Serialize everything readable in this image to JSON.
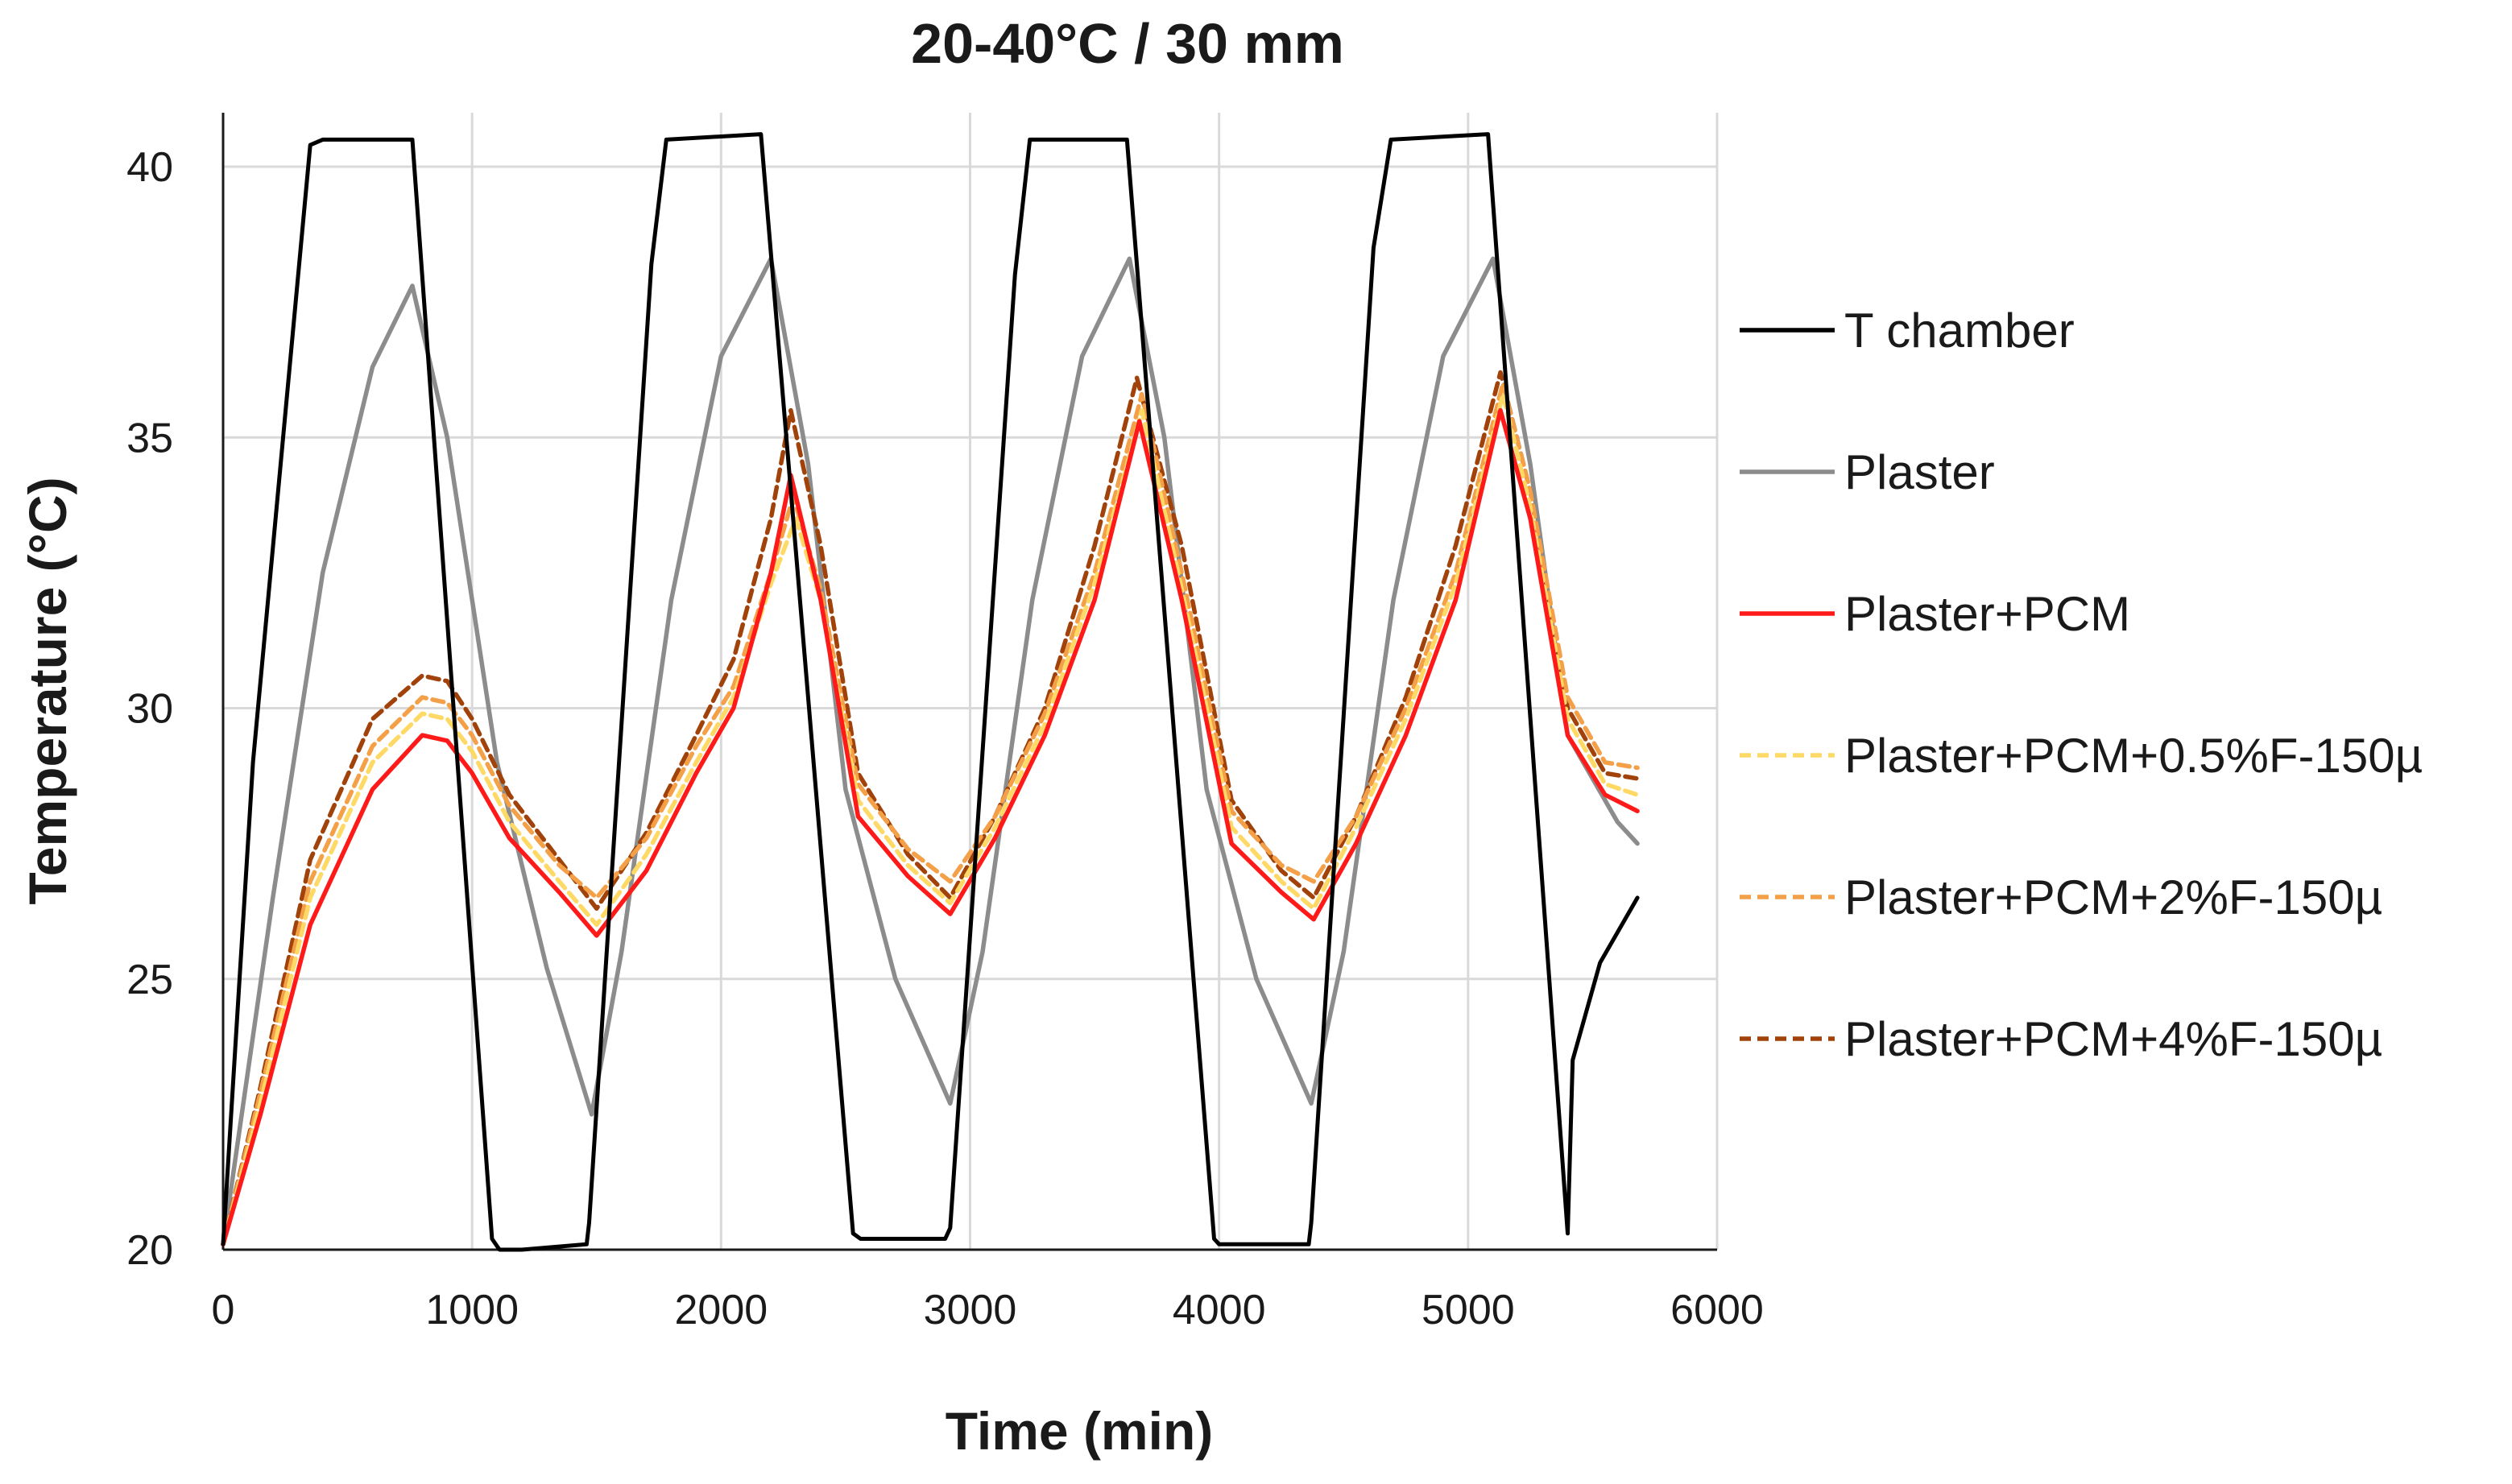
{
  "chart_data": {
    "type": "line",
    "title": "20-40°C / 30 mm",
    "xlabel": "Time (min)",
    "ylabel": "Temperature (°C)",
    "xlim": [
      0,
      6000
    ],
    "ylim": [
      20,
      41
    ],
    "x_ticks": [
      "0",
      "1000",
      "2000",
      "3000",
      "4000",
      "5000",
      "6000"
    ],
    "y_ticks": [
      "20",
      "25",
      "30",
      "35",
      "40"
    ],
    "grid": true,
    "legend_position": "right",
    "series": [
      {
        "name": "T chamber",
        "color": "#000000",
        "dash": "solid",
        "x": [
          0,
          120,
          350,
          400,
          760,
          1080,
          1110,
          1200,
          1460,
          1470,
          1720,
          1780,
          2160,
          2530,
          2560,
          2900,
          2920,
          3180,
          3240,
          3630,
          3980,
          4000,
          4360,
          4370,
          4620,
          4690,
          5080,
          5400,
          5420,
          5530,
          5680
        ],
        "values": [
          20.1,
          29.0,
          40.4,
          40.5,
          40.5,
          20.2,
          20.0,
          20.0,
          20.1,
          20.5,
          38.2,
          40.5,
          40.6,
          20.3,
          20.2,
          20.2,
          20.4,
          38.0,
          40.5,
          40.5,
          20.2,
          20.1,
          20.1,
          20.5,
          38.5,
          40.5,
          40.6,
          20.3,
          23.5,
          25.3,
          26.5
        ]
      },
      {
        "name": "Plaster",
        "color": "#8c8c8c",
        "dash": "solid",
        "x": [
          0,
          200,
          400,
          600,
          760,
          900,
          1100,
          1300,
          1480,
          1600,
          1800,
          2000,
          2200,
          2350,
          2500,
          2700,
          2920,
          3050,
          3250,
          3450,
          3640,
          3780,
          3950,
          4150,
          4370,
          4500,
          4700,
          4900,
          5100,
          5250,
          5400,
          5600,
          5680
        ],
        "values": [
          20.1,
          26.5,
          32.5,
          36.3,
          37.8,
          35.0,
          29.0,
          25.2,
          22.5,
          25.5,
          32.0,
          36.5,
          38.3,
          34.5,
          28.5,
          25.0,
          22.7,
          25.5,
          32.0,
          36.5,
          38.3,
          35.0,
          28.5,
          25.0,
          22.7,
          25.5,
          32.0,
          36.5,
          38.3,
          34.5,
          29.5,
          27.9,
          27.5
        ]
      },
      {
        "name": "Plaster+PCM",
        "color": "#ff1a1a",
        "dash": "solid",
        "x": [
          0,
          150,
          350,
          600,
          800,
          900,
          1000,
          1150,
          1350,
          1500,
          1700,
          1900,
          2050,
          2200,
          2280,
          2400,
          2550,
          2750,
          2920,
          3100,
          3300,
          3500,
          3680,
          3850,
          4050,
          4250,
          4380,
          4550,
          4750,
          4950,
          5130,
          5250,
          5400,
          5550,
          5680
        ],
        "values": [
          20.1,
          22.5,
          26.0,
          28.5,
          29.5,
          29.4,
          28.8,
          27.6,
          26.6,
          25.8,
          27.0,
          28.8,
          30.0,
          32.5,
          34.3,
          32.0,
          28.0,
          26.9,
          26.2,
          27.6,
          29.5,
          32.0,
          35.3,
          32.0,
          27.5,
          26.6,
          26.1,
          27.5,
          29.5,
          32.0,
          35.5,
          33.5,
          29.5,
          28.4,
          28.1
        ]
      },
      {
        "name": "Plaster+PCM+0.5%F-150µ",
        "color": "#ffd966",
        "dash": "dashed",
        "x": [
          0,
          150,
          350,
          600,
          800,
          900,
          1000,
          1150,
          1350,
          1500,
          1700,
          1900,
          2050,
          2200,
          2300,
          2400,
          2550,
          2750,
          2920,
          3100,
          3300,
          3500,
          3690,
          3850,
          4050,
          4250,
          4380,
          4550,
          4750,
          4950,
          5140,
          5250,
          5400,
          5550,
          5680
        ],
        "values": [
          20.1,
          22.7,
          26.5,
          29.0,
          29.9,
          29.8,
          29.2,
          27.9,
          26.8,
          26.0,
          27.3,
          29.0,
          30.2,
          32.3,
          33.5,
          32.0,
          28.3,
          27.1,
          26.4,
          27.8,
          29.7,
          32.3,
          35.5,
          32.2,
          27.8,
          26.8,
          26.3,
          27.8,
          29.8,
          32.3,
          35.8,
          33.7,
          29.8,
          28.6,
          28.4
        ]
      },
      {
        "name": "Plaster+PCM+2%F-150µ",
        "color": "#f4a048",
        "dash": "dashed",
        "x": [
          0,
          150,
          350,
          600,
          800,
          900,
          1000,
          1150,
          1350,
          1500,
          1700,
          1900,
          2050,
          2200,
          2290,
          2400,
          2550,
          2750,
          2920,
          3100,
          3300,
          3500,
          3690,
          3850,
          4050,
          4250,
          4380,
          4550,
          4750,
          4950,
          5140,
          5250,
          5400,
          5550,
          5680
        ],
        "values": [
          20.1,
          22.9,
          26.8,
          29.3,
          30.2,
          30.1,
          29.5,
          28.2,
          27.1,
          26.5,
          27.6,
          29.3,
          30.4,
          32.5,
          33.9,
          32.2,
          28.6,
          27.4,
          26.8,
          28.0,
          29.9,
          32.5,
          35.8,
          32.5,
          28.1,
          27.1,
          26.8,
          28.0,
          30.0,
          32.5,
          36.0,
          34.0,
          30.2,
          29.0,
          28.9
        ]
      },
      {
        "name": "Plaster+PCM+4%F-150µ",
        "color": "#a0420a",
        "dash": "dashed",
        "x": [
          0,
          150,
          350,
          600,
          800,
          900,
          1000,
          1150,
          1350,
          1500,
          1700,
          1900,
          2050,
          2200,
          2280,
          2400,
          2550,
          2750,
          2920,
          3100,
          3300,
          3500,
          3670,
          3850,
          4050,
          4250,
          4380,
          4550,
          4750,
          4950,
          5130,
          5250,
          5400,
          5550,
          5680
        ],
        "values": [
          20.1,
          23.0,
          27.2,
          29.8,
          30.6,
          30.5,
          29.8,
          28.4,
          27.2,
          26.3,
          27.7,
          29.5,
          30.9,
          33.5,
          35.5,
          33.0,
          28.8,
          27.3,
          26.5,
          28.0,
          30.0,
          33.0,
          36.1,
          33.0,
          28.3,
          27.0,
          26.5,
          28.0,
          30.2,
          33.0,
          36.2,
          34.0,
          30.0,
          28.8,
          28.7
        ]
      }
    ]
  }
}
